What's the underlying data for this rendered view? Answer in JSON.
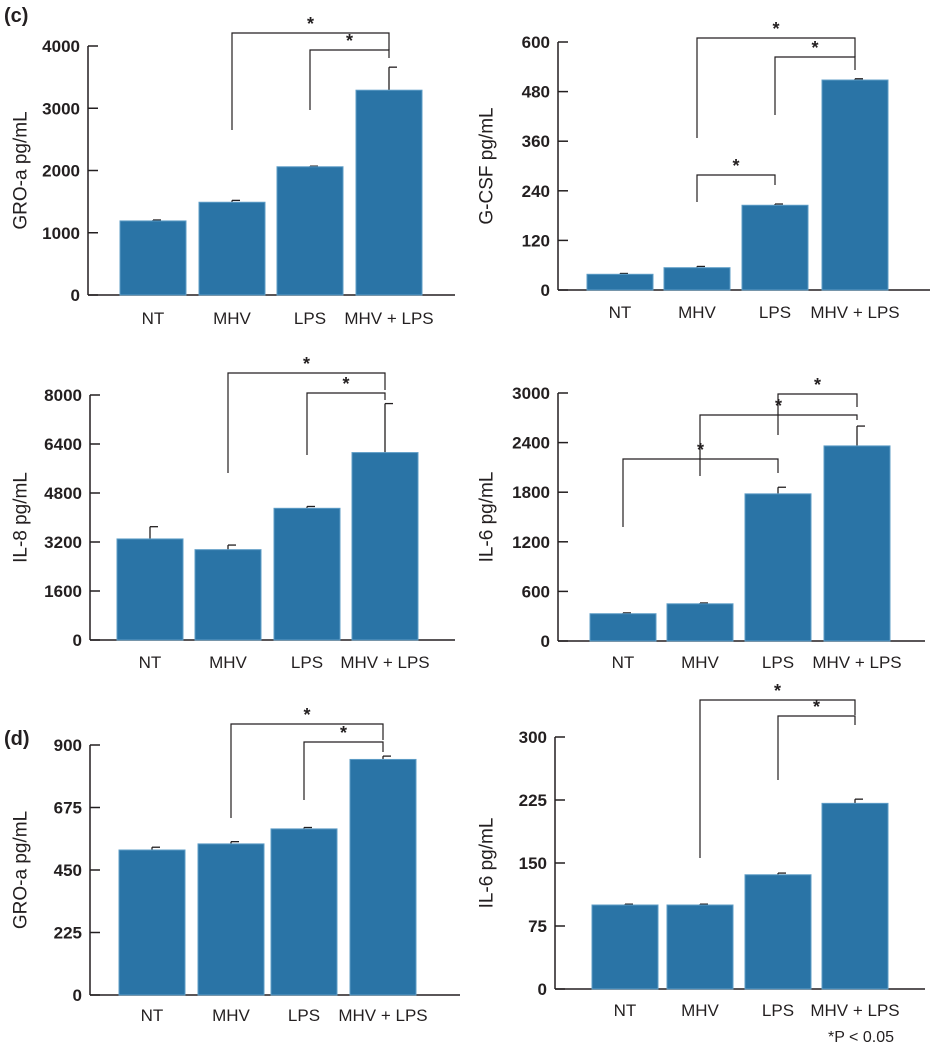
{
  "panel_labels": [
    "(c)",
    "(d)"
  ],
  "footnote": "*P < 0.05",
  "bar_color": "#2a74a6",
  "chart_data": [
    {
      "type": "bar",
      "panel": "(c)",
      "ylabel": "GRO-a pg/mL",
      "categories": [
        "NT",
        "MHV",
        "LPS",
        "MHV + LPS"
      ],
      "values": [
        1190,
        1490,
        2060,
        3290
      ],
      "errors": [
        15,
        30,
        10,
        370
      ],
      "ylim": [
        0,
        4000
      ],
      "yticks": [
        0,
        1000,
        2000,
        3000,
        4000
      ],
      "significance": [
        {
          "groups": [
            "MHV",
            "MHV + LPS"
          ],
          "label": "*"
        },
        {
          "groups": [
            "LPS",
            "MHV + LPS"
          ],
          "label": "*"
        }
      ]
    },
    {
      "type": "bar",
      "panel": "(c)",
      "ylabel": "G-CSF pg/mL",
      "categories": [
        "NT",
        "MHV",
        "LPS",
        "MHV + LPS"
      ],
      "values": [
        38,
        54,
        205,
        508
      ],
      "errors": [
        2,
        3,
        3,
        3
      ],
      "ylim": [
        0,
        600
      ],
      "yticks": [
        0,
        120,
        240,
        360,
        480,
        600
      ],
      "significance": [
        {
          "groups": [
            "MHV",
            "MHV + LPS"
          ],
          "label": "*"
        },
        {
          "groups": [
            "LPS",
            "MHV + LPS"
          ],
          "label": "*"
        },
        {
          "groups": [
            "MHV",
            "LPS"
          ],
          "label": "*"
        }
      ]
    },
    {
      "type": "bar",
      "panel": "(c)",
      "ylabel": "IL-8 pg/mL",
      "categories": [
        "NT",
        "MHV",
        "LPS",
        "MHV + LPS"
      ],
      "values": [
        3300,
        2950,
        4300,
        6120
      ],
      "errors": [
        400,
        150,
        60,
        1600
      ],
      "ylim": [
        0,
        8000
      ],
      "yticks": [
        0,
        1600,
        3200,
        4800,
        6400,
        8000
      ],
      "significance": [
        {
          "groups": [
            "MHV",
            "MHV + LPS"
          ],
          "label": "*"
        },
        {
          "groups": [
            "LPS",
            "MHV + LPS"
          ],
          "label": "*"
        }
      ]
    },
    {
      "type": "bar",
      "panel": "(c)",
      "ylabel": "IL-6 pg/mL",
      "categories": [
        "NT",
        "MHV",
        "LPS",
        "MHV + LPS"
      ],
      "values": [
        330,
        450,
        1780,
        2360
      ],
      "errors": [
        10,
        10,
        80,
        240
      ],
      "ylim": [
        0,
        3000
      ],
      "yticks": [
        0,
        600,
        1200,
        1800,
        2400,
        3000
      ],
      "significance": [
        {
          "groups": [
            "NT",
            "LPS"
          ],
          "label": "*"
        },
        {
          "groups": [
            "MHV",
            "MHV + LPS"
          ],
          "label": "*"
        },
        {
          "groups": [
            "LPS",
            "MHV + LPS"
          ],
          "label": "*"
        }
      ]
    },
    {
      "type": "bar",
      "panel": "(d)",
      "ylabel": "GRO-a pg/mL",
      "categories": [
        "NT",
        "MHV",
        "LPS",
        "MHV + LPS"
      ],
      "values": [
        522,
        544,
        598,
        848
      ],
      "errors": [
        10,
        8,
        5,
        12
      ],
      "ylim": [
        0,
        900
      ],
      "yticks": [
        0,
        225,
        450,
        675,
        900
      ],
      "significance": [
        {
          "groups": [
            "MHV",
            "MHV + LPS"
          ],
          "label": "*"
        },
        {
          "groups": [
            "LPS",
            "MHV + LPS"
          ],
          "label": "*"
        }
      ]
    },
    {
      "type": "bar",
      "panel": "(d)",
      "ylabel": "IL-6 pg/mL",
      "categories": [
        "NT",
        "MHV",
        "LPS",
        "MHV + LPS"
      ],
      "values": [
        100,
        100,
        136,
        221
      ],
      "errors": [
        1,
        1,
        2,
        5
      ],
      "ylim": [
        0,
        300
      ],
      "yticks": [
        0,
        75,
        150,
        225,
        300
      ],
      "significance": [
        {
          "groups": [
            "MHV",
            "MHV + LPS"
          ],
          "label": "*"
        },
        {
          "groups": [
            "LPS",
            "MHV + LPS"
          ],
          "label": "*"
        }
      ]
    }
  ]
}
